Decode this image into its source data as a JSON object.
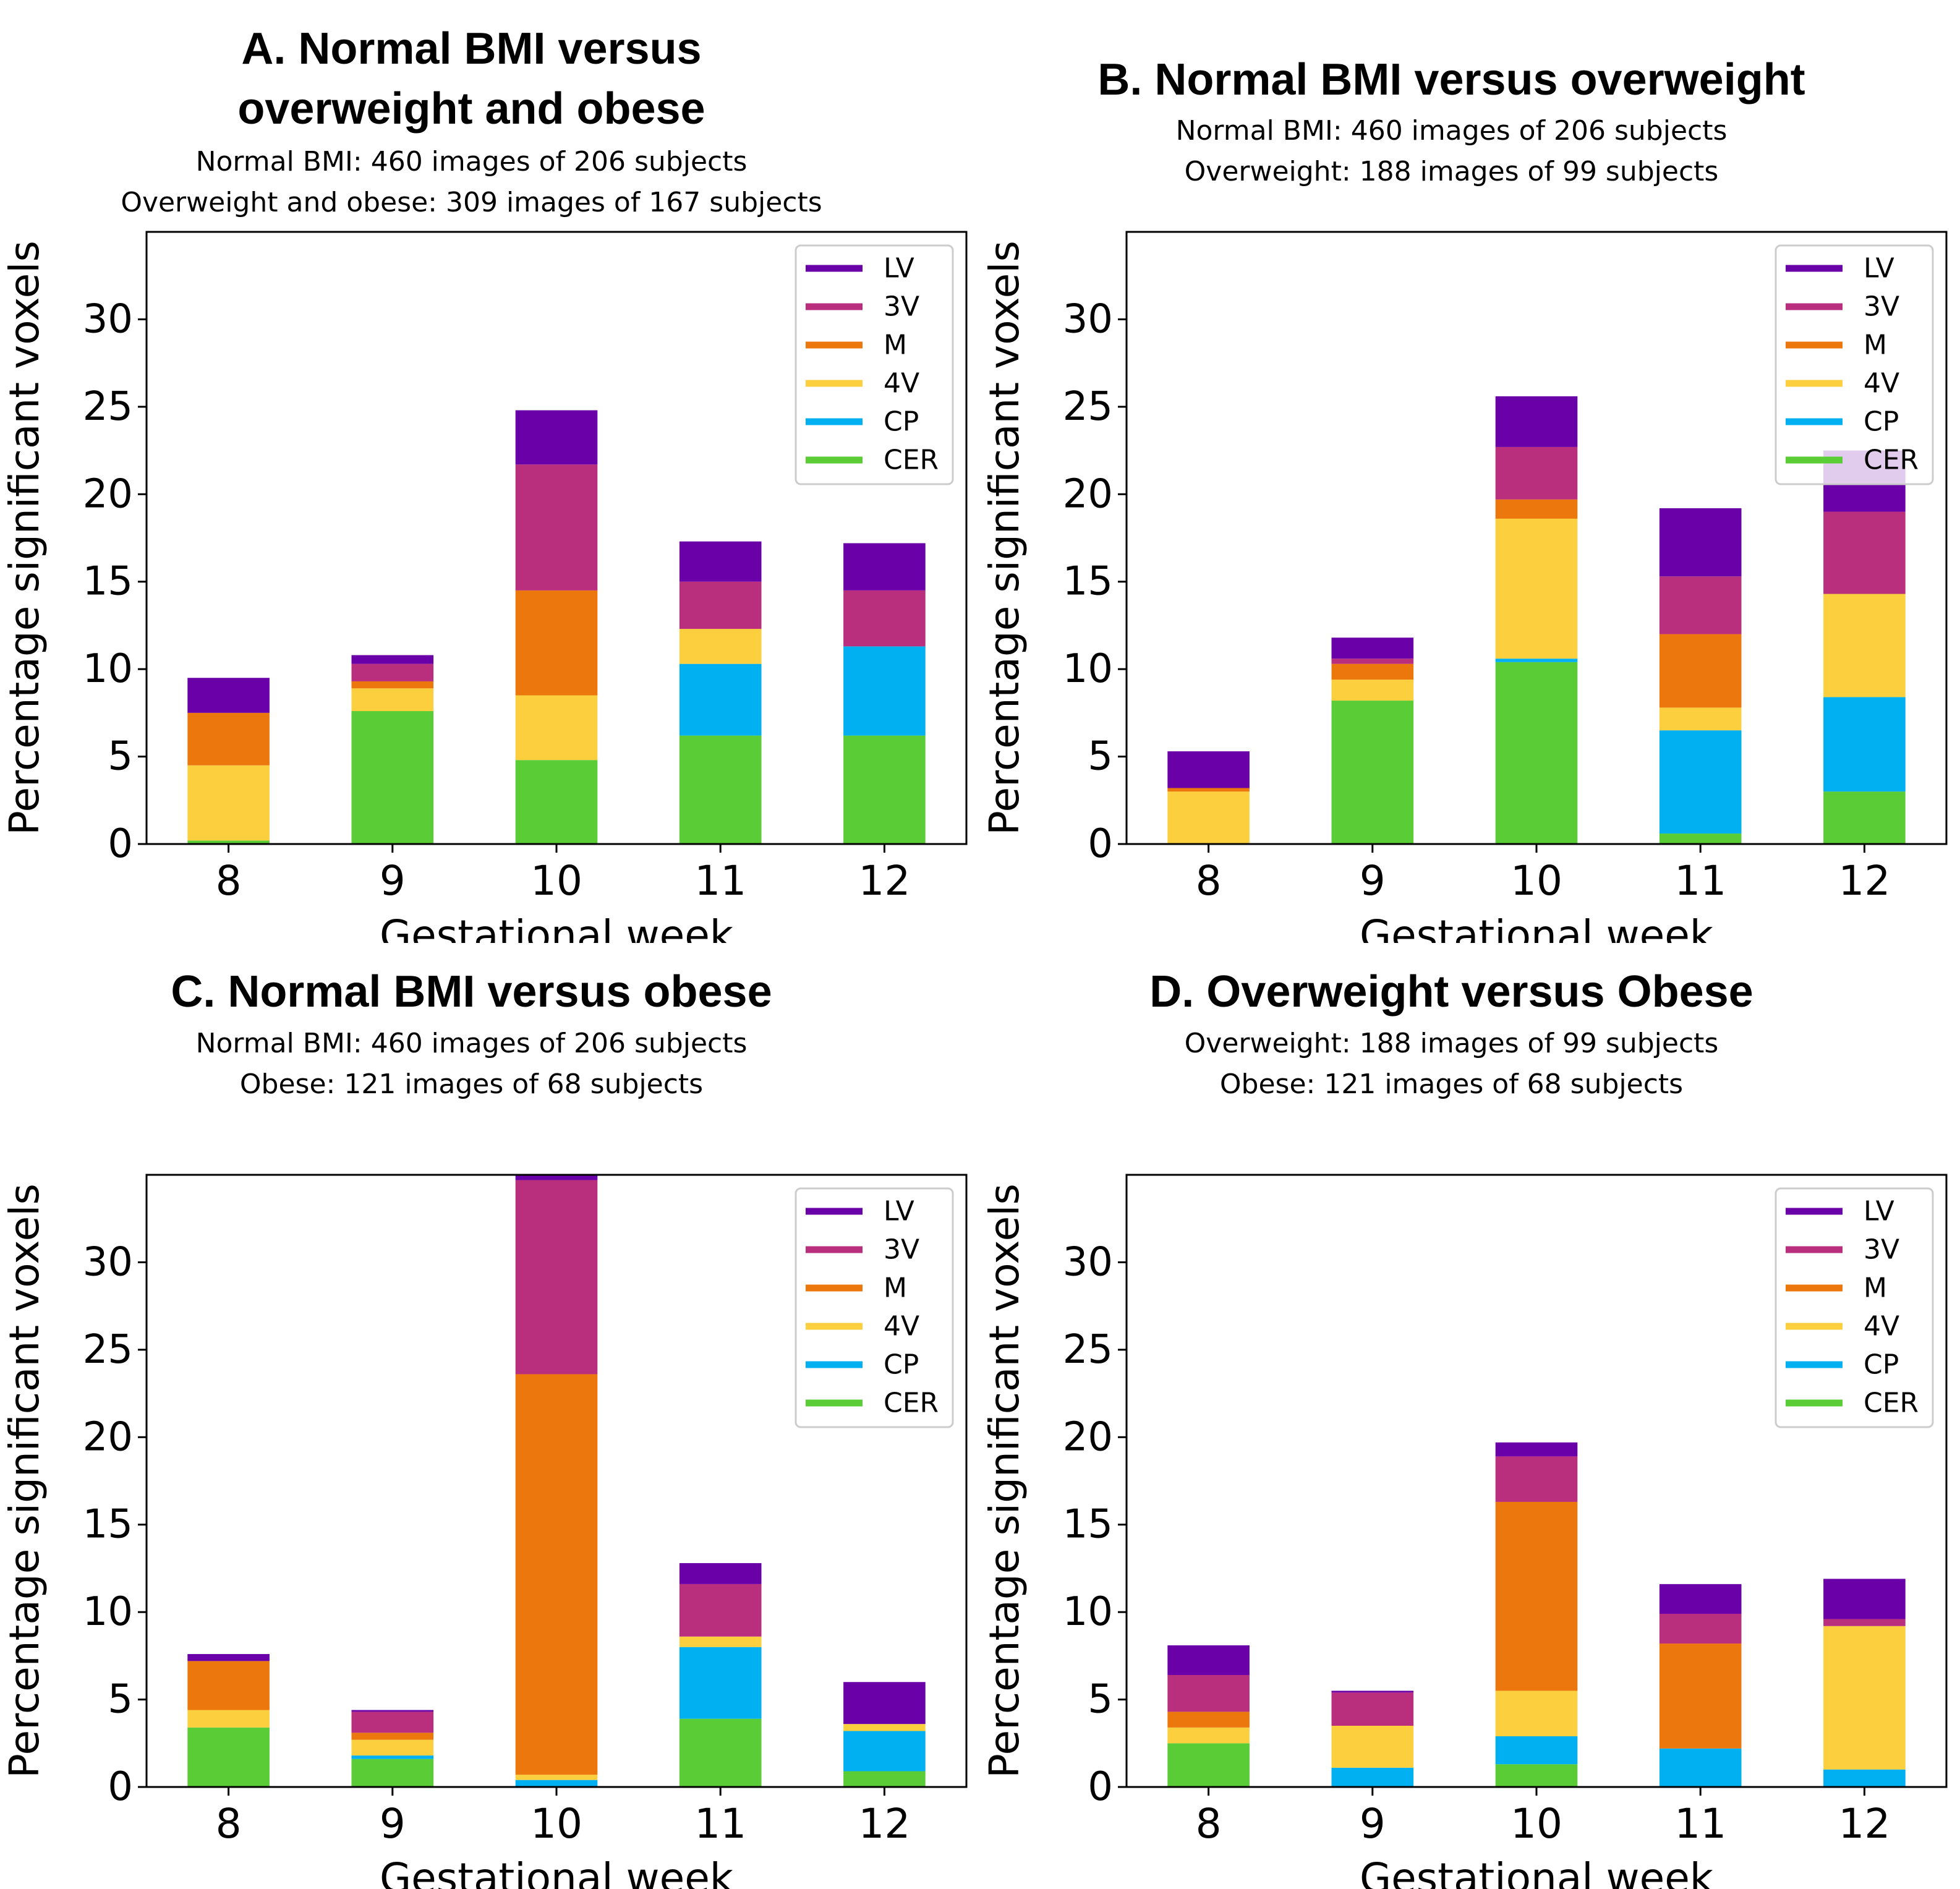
{
  "legend_labels": [
    "LV",
    "3V",
    "M",
    "4V",
    "CP",
    "CER"
  ],
  "chart_data": [
    {
      "type": "bar",
      "stacked": true,
      "title_lines": [
        "A.   Normal BMI versus",
        "overweight and obese"
      ],
      "subtitle_lines": [
        "Normal BMI: 460 images of 206 subjects",
        "Overweight and obese: 309 images of 167 subjects"
      ],
      "xlabel": "Gestational week",
      "ylabel": "Percentage significant voxels",
      "categories": [
        "8",
        "9",
        "10",
        "11",
        "12"
      ],
      "yticks": [
        "0",
        "5",
        "10",
        "15",
        "20",
        "25",
        "30"
      ],
      "ylim": [
        0,
        35
      ],
      "legend_position": "upper right",
      "series": [
        {
          "name": "CER",
          "color": "#5acc36",
          "values": [
            0.2,
            7.6,
            4.8,
            6.2,
            6.2
          ]
        },
        {
          "name": "CP",
          "color": "#00b0f0",
          "values": [
            0,
            0,
            0,
            4.1,
            5.1
          ]
        },
        {
          "name": "4V",
          "color": "#fccf3e",
          "values": [
            4.3,
            1.3,
            3.7,
            2.0,
            0
          ]
        },
        {
          "name": "M",
          "color": "#ec770c",
          "values": [
            3.0,
            0.4,
            6.0,
            0,
            0
          ]
        },
        {
          "name": "3V",
          "color": "#b92f7d",
          "values": [
            0,
            1.0,
            7.2,
            2.7,
            3.2
          ]
        },
        {
          "name": "LV",
          "color": "#6a00a8",
          "values": [
            2.0,
            0.5,
            3.1,
            2.3,
            2.7
          ]
        }
      ]
    },
    {
      "type": "bar",
      "stacked": true,
      "title_lines": [
        "B. Normal BMI versus overweight"
      ],
      "subtitle_lines": [
        "Normal BMI: 460 images of 206 subjects",
        "Overweight: 188 images of 99 subjects"
      ],
      "xlabel": "Gestational week",
      "ylabel": "Percentage significant voxels",
      "categories": [
        "8",
        "9",
        "10",
        "11",
        "12"
      ],
      "yticks": [
        "0",
        "5",
        "10",
        "15",
        "20",
        "25",
        "30"
      ],
      "ylim": [
        0,
        35
      ],
      "legend_position": "upper right",
      "series": [
        {
          "name": "CER",
          "color": "#5acc36",
          "values": [
            0,
            8.2,
            10.4,
            0.6,
            3.0
          ]
        },
        {
          "name": "CP",
          "color": "#00b0f0",
          "values": [
            0,
            0,
            0.2,
            5.9,
            5.4
          ]
        },
        {
          "name": "4V",
          "color": "#fccf3e",
          "values": [
            3.0,
            1.2,
            8.0,
            1.3,
            5.9
          ]
        },
        {
          "name": "M",
          "color": "#ec770c",
          "values": [
            0.2,
            0.9,
            1.1,
            4.2,
            0
          ]
        },
        {
          "name": "3V",
          "color": "#b92f7d",
          "values": [
            0,
            0.3,
            3.0,
            3.3,
            4.7
          ]
        },
        {
          "name": "LV",
          "color": "#6a00a8",
          "values": [
            2.1,
            1.2,
            2.9,
            3.9,
            3.5
          ]
        }
      ]
    },
    {
      "type": "bar",
      "stacked": true,
      "title_lines": [
        "C. Normal BMI versus obese"
      ],
      "subtitle_lines": [
        "Normal BMI: 460 images of 206 subjects",
        "Obese: 121 images of 68 subjects"
      ],
      "xlabel": "Gestational week",
      "ylabel": "Percentage significant voxels",
      "categories": [
        "8",
        "9",
        "10",
        "11",
        "12"
      ],
      "yticks": [
        "0",
        "5",
        "10",
        "15",
        "20",
        "25",
        "30"
      ],
      "ylim": [
        0,
        35
      ],
      "legend_position": "upper right",
      "series": [
        {
          "name": "CER",
          "color": "#5acc36",
          "values": [
            3.4,
            1.6,
            0,
            3.9,
            0.9
          ]
        },
        {
          "name": "CP",
          "color": "#00b0f0",
          "values": [
            0,
            0.2,
            0.4,
            4.1,
            2.3
          ]
        },
        {
          "name": "4V",
          "color": "#fccf3e",
          "values": [
            1.0,
            0.9,
            0.3,
            0.6,
            0.4
          ]
        },
        {
          "name": "M",
          "color": "#ec770c",
          "values": [
            2.8,
            0.4,
            22.9,
            0,
            0
          ]
        },
        {
          "name": "3V",
          "color": "#b92f7d",
          "values": [
            0,
            1.2,
            11.1,
            3.0,
            0
          ]
        },
        {
          "name": "LV",
          "color": "#6a00a8",
          "values": [
            0.4,
            0.1,
            0.3,
            1.2,
            2.4
          ]
        }
      ]
    },
    {
      "type": "bar",
      "stacked": true,
      "title_lines": [
        "D. Overweight versus Obese"
      ],
      "subtitle_lines": [
        "Overweight: 188 images of 99 subjects",
        "Obese: 121 images of 68 subjects"
      ],
      "xlabel": "Gestational week",
      "ylabel": "Percentage significant voxels",
      "categories": [
        "8",
        "9",
        "10",
        "11",
        "12"
      ],
      "yticks": [
        "0",
        "5",
        "10",
        "15",
        "20",
        "25",
        "30"
      ],
      "ylim": [
        0,
        35
      ],
      "legend_position": "upper right",
      "series": [
        {
          "name": "CER",
          "color": "#5acc36",
          "values": [
            2.5,
            0,
            1.3,
            0,
            0
          ]
        },
        {
          "name": "CP",
          "color": "#00b0f0",
          "values": [
            0,
            1.1,
            1.6,
            2.2,
            1.0
          ]
        },
        {
          "name": "4V",
          "color": "#fccf3e",
          "values": [
            0.9,
            2.4,
            2.6,
            0,
            8.2
          ]
        },
        {
          "name": "M",
          "color": "#ec770c",
          "values": [
            0.9,
            0,
            10.8,
            6.0,
            0
          ]
        },
        {
          "name": "3V",
          "color": "#b92f7d",
          "values": [
            2.1,
            1.9,
            2.6,
            1.7,
            0.4
          ]
        },
        {
          "name": "LV",
          "color": "#6a00a8",
          "values": [
            1.7,
            0.1,
            0.8,
            1.7,
            2.3
          ]
        }
      ]
    }
  ]
}
